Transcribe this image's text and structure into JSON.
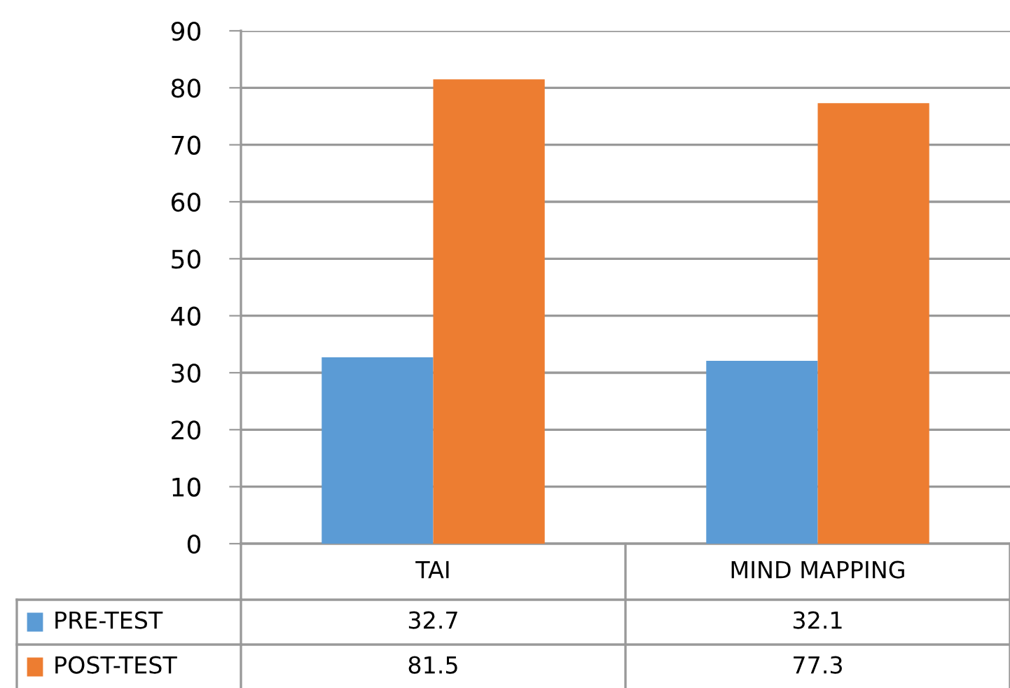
{
  "chart_data": {
    "type": "bar",
    "categories": [
      "TAI",
      "MIND MAPPING"
    ],
    "series": [
      {
        "name": "PRE-TEST",
        "color": "#5b9bd5",
        "values": [
          32.7,
          32.1
        ]
      },
      {
        "name": "POST-TEST",
        "color": "#ed7d31",
        "values": [
          81.5,
          77.3
        ]
      }
    ],
    "ylim": [
      0,
      90
    ],
    "yticks": [
      0,
      10,
      20,
      30,
      40,
      50,
      60,
      70,
      80,
      90
    ],
    "grid": "y",
    "data_labels": true,
    "legend": "bottom"
  }
}
